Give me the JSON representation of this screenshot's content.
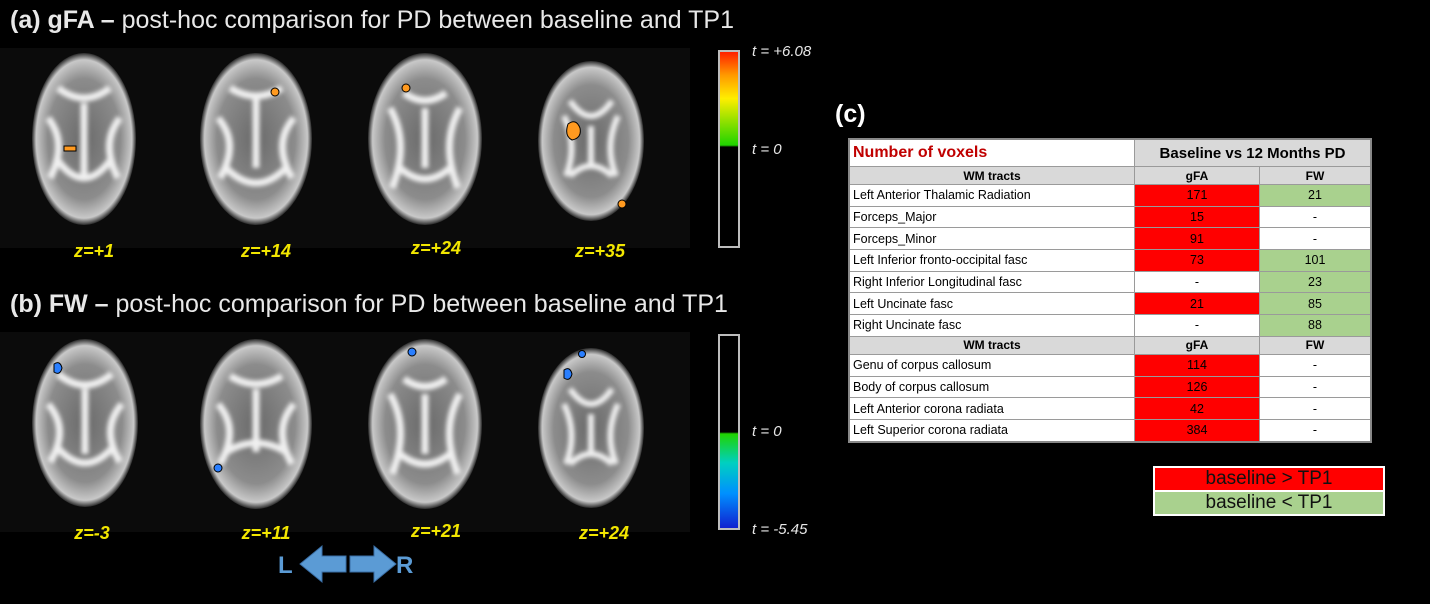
{
  "panel_a": {
    "label": "(a) gFA",
    "dash": " – ",
    "title": "post-hoc comparison for PD between baseline and TP1",
    "slices": [
      "z=+1",
      "z=+14",
      "z=+24",
      "z=+35"
    ],
    "colorbar": {
      "max_label": "t = +6.08",
      "zero_label": "t = 0"
    }
  },
  "panel_b": {
    "label": "(b) FW",
    "dash": " – ",
    "title": "post-hoc comparison for PD between baseline and TP1",
    "slices": [
      "z=-3",
      "z=+11",
      "z=+21",
      "z=+24"
    ],
    "colorbar": {
      "zero_label": "t = 0",
      "min_label": "t = -5.45"
    }
  },
  "orientation": {
    "left": "L",
    "right": "R"
  },
  "panel_c": {
    "label": "(c)",
    "table": {
      "title": "Number of voxels",
      "comparison": "Baseline vs 12 Months PD",
      "col_tracts": "WM tracts",
      "col_gfa": "gFA",
      "col_fw": "FW",
      "group1": [
        {
          "tract": "Left Anterior Thalamic Radiation",
          "gfa": "171",
          "fw": "21"
        },
        {
          "tract": "Forceps_Major",
          "gfa": "15",
          "fw": "-"
        },
        {
          "tract": "Forceps_Minor",
          "gfa": "91",
          "fw": "-"
        },
        {
          "tract": "Left Inferior fronto-occipital fasc",
          "gfa": "73",
          "fw": "101"
        },
        {
          "tract": "Right Inferior Longitudinal fasc",
          "gfa": "-",
          "fw": "23"
        },
        {
          "tract": "Left Uncinate fasc",
          "gfa": "21",
          "fw": "85"
        },
        {
          "tract": "Right Uncinate fasc",
          "gfa": "-",
          "fw": "88"
        }
      ],
      "group2": [
        {
          "tract": "Genu of corpus callosum",
          "gfa": "114",
          "fw": "-"
        },
        {
          "tract": "Body of corpus callosum",
          "gfa": "126",
          "fw": "-"
        },
        {
          "tract": "Left Anterior corona radiata",
          "gfa": "42",
          "fw": "-"
        },
        {
          "tract": "Left Superior corona radiata",
          "gfa": "384",
          "fw": "-"
        }
      ]
    },
    "legend": [
      {
        "label": "baseline > TP1",
        "color": "#ff0000"
      },
      {
        "label": "baseline < TP1",
        "color": "#a9d18e"
      }
    ]
  },
  "colors": {
    "slice_label": "#f2e600",
    "increase": "#ff0000",
    "decrease": "#a9d18e",
    "arrow": "#5b9bd5"
  }
}
